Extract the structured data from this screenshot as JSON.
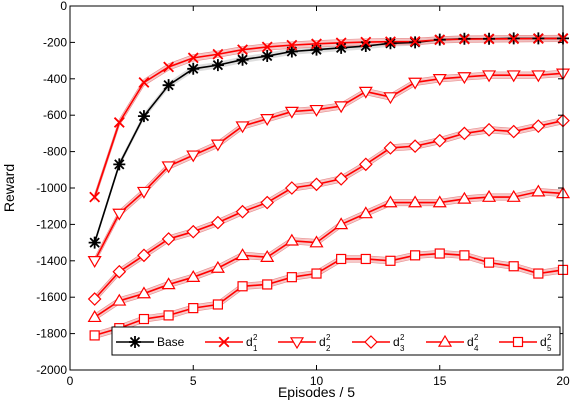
{
  "chart_data": {
    "type": "line",
    "xlabel": "Episodes / 5",
    "ylabel": "Reward",
    "xlim": [
      0,
      20
    ],
    "ylim": [
      -2000,
      0
    ],
    "xticks": [
      0,
      5,
      10,
      15,
      20
    ],
    "yticks": [
      -2000,
      -1800,
      -1600,
      -1400,
      -1200,
      -1000,
      -800,
      -600,
      -400,
      -200,
      0
    ],
    "legend_position": "bottom",
    "grid": false,
    "x": [
      1,
      2,
      3,
      4,
      5,
      6,
      7,
      8,
      9,
      10,
      11,
      12,
      13,
      14,
      15,
      16,
      17,
      18,
      19,
      20
    ],
    "series": [
      {
        "name": "Base",
        "color": "#000000",
        "marker": "asterisk",
        "values": [
          -1300,
          -870,
          -605,
          -435,
          -345,
          -325,
          -295,
          -275,
          -250,
          -240,
          -230,
          -220,
          -205,
          -200,
          -185,
          -180,
          -180,
          -178,
          -178,
          -178
        ]
      },
      {
        "name": "d",
        "sup": "2",
        "sub": "1",
        "color": "#ff0000",
        "marker": "x",
        "values": [
          -1050,
          -640,
          -420,
          -335,
          -285,
          -265,
          -240,
          -225,
          -215,
          -208,
          -202,
          -198,
          -196,
          -195,
          -186,
          -182,
          -181,
          -180,
          -179,
          -178
        ]
      },
      {
        "name": "d",
        "sup": "2",
        "sub": "2",
        "color": "#ff0000",
        "marker": "triangle-down",
        "values": [
          -1400,
          -1140,
          -1020,
          -880,
          -820,
          -760,
          -660,
          -620,
          -580,
          -570,
          -550,
          -470,
          -500,
          -420,
          -400,
          -390,
          -380,
          -380,
          -380,
          -370
        ]
      },
      {
        "name": "d",
        "sup": "2",
        "sub": "3",
        "color": "#ff0000",
        "marker": "diamond",
        "values": [
          -1610,
          -1460,
          -1370,
          -1280,
          -1240,
          -1190,
          -1130,
          -1080,
          -1000,
          -980,
          -950,
          -870,
          -780,
          -770,
          -740,
          -700,
          -680,
          -690,
          -660,
          -630
        ]
      },
      {
        "name": "d",
        "sup": "2",
        "sub": "4",
        "color": "#ff0000",
        "marker": "triangle-up",
        "values": [
          -1710,
          -1620,
          -1580,
          -1530,
          -1490,
          -1440,
          -1370,
          -1380,
          -1290,
          -1300,
          -1200,
          -1140,
          -1080,
          -1080,
          -1080,
          -1060,
          -1050,
          -1050,
          -1020,
          -1030
        ]
      },
      {
        "name": "d",
        "sup": "2",
        "sub": "5",
        "color": "#ff0000",
        "marker": "square",
        "values": [
          -1810,
          -1770,
          -1720,
          -1700,
          -1660,
          -1640,
          -1540,
          -1530,
          -1490,
          -1470,
          -1390,
          -1390,
          -1400,
          -1370,
          -1360,
          -1370,
          -1410,
          -1430,
          -1470,
          -1450
        ]
      }
    ]
  }
}
